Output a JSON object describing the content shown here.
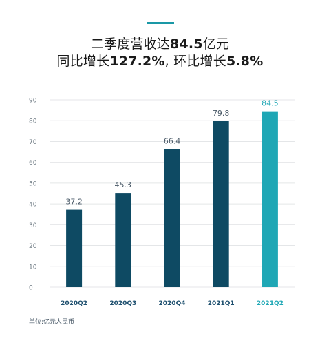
{
  "header": {
    "line1_prefix": "二季度营收达",
    "line1_value": "84.5",
    "line1_suffix": "亿元",
    "line2_a": "同比增长",
    "line2_a_value": "127.2%",
    "line2_sep": ", ",
    "line2_b": "环比增长",
    "line2_b_value": "5.8%"
  },
  "footer": {
    "unit_note": "单位:亿元人民币"
  },
  "colors": {
    "accent": "#1a98a6",
    "bar_dark": "#0e4a63",
    "bar_highlight": "#1fa7b5",
    "grid": "#e4e6e8",
    "tick_text": "#6b7780",
    "category_text": "#1d4f6e"
  },
  "chart_data": {
    "type": "bar",
    "categories": [
      "2020Q2",
      "2020Q3",
      "2020Q4",
      "2021Q1",
      "2021Q2"
    ],
    "values": [
      37.2,
      45.3,
      66.4,
      79.8,
      84.5
    ],
    "value_labels": [
      "37.2",
      "45.3",
      "66.4",
      "79.8",
      "84.5"
    ],
    "highlight_index": 4,
    "title": "",
    "xlabel": "",
    "ylabel": "",
    "ylim": [
      0,
      90
    ],
    "yticks": [
      0,
      10,
      20,
      30,
      40,
      50,
      60,
      70,
      80,
      90
    ],
    "grid": true,
    "legend": "none"
  }
}
